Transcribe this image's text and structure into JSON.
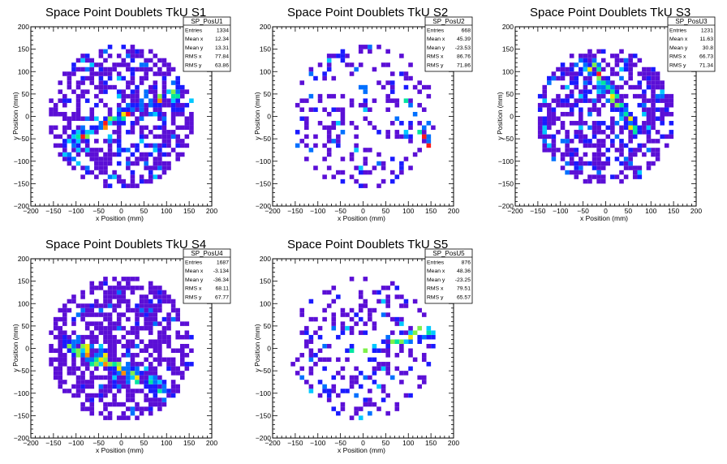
{
  "chart_data": [
    {
      "type": "heatmap",
      "title": "Space Point Doublets TkU S1",
      "xlabel": "x Position (mm)",
      "ylabel": "y Position (mm)",
      "xlim": [
        -200,
        200
      ],
      "ylim": [
        -200,
        200
      ],
      "xticks": [
        -200,
        -150,
        -100,
        -50,
        0,
        50,
        100,
        150,
        200
      ],
      "yticks": [
        -200,
        -150,
        -100,
        -50,
        0,
        50,
        100,
        150,
        200
      ],
      "stats": {
        "name": "SP_PosU1",
        "rows": [
          {
            "label": "Entries",
            "value": "1334"
          },
          {
            "label": "Mean x",
            "value": "12.34"
          },
          {
            "label": "Mean y",
            "value": "13.31"
          },
          {
            "label": "RMS x",
            "value": "77.84"
          },
          {
            "label": "RMS y",
            "value": "63.86"
          }
        ]
      },
      "entries": 1334,
      "mean_x": 12.34,
      "mean_y": 13.31,
      "rms_x": 77.84,
      "rms_y": 63.86,
      "bin_width_mm": 10,
      "fill_radius_mm": 160,
      "density": 0.55,
      "seed": 11,
      "hot_bands": [
        {
          "x1": -110,
          "y1": -55,
          "x2": 120,
          "y2": 60,
          "width": 22
        }
      ]
    },
    {
      "type": "heatmap",
      "title": "Space Point Doublets TkU S2",
      "xlabel": "x Position (mm)",
      "ylabel": "y Position (mm)",
      "xlim": [
        -200,
        200
      ],
      "ylim": [
        -200,
        200
      ],
      "xticks": [
        -200,
        -150,
        -100,
        -50,
        0,
        50,
        100,
        150,
        200
      ],
      "yticks": [
        -200,
        -150,
        -100,
        -50,
        0,
        50,
        100,
        150,
        200
      ],
      "stats": {
        "name": "SP_PosU2",
        "rows": [
          {
            "label": "Entries",
            "value": "668"
          },
          {
            "label": "Mean x",
            "value": "45.39"
          },
          {
            "label": "Mean y",
            "value": "-23.53"
          },
          {
            "label": "RMS x",
            "value": "86.76"
          },
          {
            "label": "RMS y",
            "value": "71.86"
          }
        ]
      },
      "entries": 668,
      "mean_x": 45.39,
      "mean_y": -23.53,
      "rms_x": 86.76,
      "rms_y": 71.86,
      "bin_width_mm": 10,
      "fill_radius_mm": 160,
      "density": 0.22,
      "seed": 23,
      "hot_bands": [
        {
          "x1": 100,
          "y1": 30,
          "x2": 160,
          "y2": -100,
          "width": 18
        }
      ]
    },
    {
      "type": "heatmap",
      "title": "Space Point Doublets TkU S3",
      "xlabel": "x Position (mm)",
      "ylabel": "y Position (mm)",
      "xlim": [
        -200,
        200
      ],
      "ylim": [
        -200,
        200
      ],
      "xticks": [
        -200,
        -150,
        -100,
        -50,
        0,
        50,
        100,
        150,
        200
      ],
      "yticks": [
        -200,
        -150,
        -100,
        -50,
        0,
        50,
        100,
        150,
        200
      ],
      "stats": {
        "name": "SP_PosU3",
        "rows": [
          {
            "label": "Entries",
            "value": "1231"
          },
          {
            "label": "Mean x",
            "value": "11.63"
          },
          {
            "label": "Mean y",
            "value": "30.8"
          },
          {
            "label": "RMS x",
            "value": "66.73"
          },
          {
            "label": "RMS y",
            "value": "71.34"
          }
        ]
      },
      "entries": 1231,
      "mean_x": 11.63,
      "mean_y": 30.8,
      "rms_x": 66.73,
      "rms_y": 71.34,
      "bin_width_mm": 10,
      "fill_radius_mm": 155,
      "density": 0.58,
      "seed": 37,
      "hot_bands": [
        {
          "x1": -40,
          "y1": 130,
          "x2": 60,
          "y2": -30,
          "width": 20
        }
      ]
    },
    {
      "type": "heatmap",
      "title": "Space Point Doublets TkU S4",
      "xlabel": "x Position (mm)",
      "ylabel": "y Position (mm)",
      "xlim": [
        -200,
        200
      ],
      "ylim": [
        -200,
        200
      ],
      "xticks": [
        -200,
        -150,
        -100,
        -50,
        0,
        50,
        100,
        150,
        200
      ],
      "yticks": [
        -200,
        -150,
        -100,
        -50,
        0,
        50,
        100,
        150,
        200
      ],
      "stats": {
        "name": "SP_PosU4",
        "rows": [
          {
            "label": "Entries",
            "value": "1687"
          },
          {
            "label": "Mean x",
            "value": "-3.134"
          },
          {
            "label": "Mean y",
            "value": "-36.34"
          },
          {
            "label": "RMS x",
            "value": "68.11"
          },
          {
            "label": "RMS y",
            "value": "67.77"
          }
        ]
      },
      "entries": 1687,
      "mean_x": -3.134,
      "mean_y": -36.34,
      "rms_x": 68.11,
      "rms_y": 67.77,
      "bin_width_mm": 10,
      "fill_radius_mm": 160,
      "density": 0.6,
      "seed": 53,
      "hot_bands": [
        {
          "x1": -110,
          "y1": 10,
          "x2": 90,
          "y2": -90,
          "width": 25
        }
      ]
    },
    {
      "type": "heatmap",
      "title": "Space Point Doublets TkU S5",
      "xlabel": "x Position (mm)",
      "ylabel": "y Position (mm)",
      "xlim": [
        -200,
        200
      ],
      "ylim": [
        -200,
        200
      ],
      "xticks": [
        -200,
        -150,
        -100,
        -50,
        0,
        50,
        100,
        150,
        200
      ],
      "yticks": [
        -200,
        -150,
        -100,
        -50,
        0,
        50,
        100,
        150,
        200
      ],
      "stats": {
        "name": "SP_PosU5",
        "rows": [
          {
            "label": "Entries",
            "value": "876"
          },
          {
            "label": "Mean x",
            "value": "48.36"
          },
          {
            "label": "Mean y",
            "value": "-23.25"
          },
          {
            "label": "RMS x",
            "value": "79.51"
          },
          {
            "label": "RMS y",
            "value": "65.57"
          }
        ]
      },
      "entries": 876,
      "mean_x": 48.36,
      "mean_y": -23.25,
      "rms_x": 79.51,
      "rms_y": 65.57,
      "bin_width_mm": 10,
      "fill_radius_mm": 160,
      "density": 0.28,
      "seed": 71,
      "hot_bands": [
        {
          "x1": -30,
          "y1": -10,
          "x2": 150,
          "y2": 40,
          "width": 20
        }
      ]
    }
  ],
  "colors": {
    "palette": [
      "#5b0fd6",
      "#1a1aff",
      "#0070ff",
      "#00c8ff",
      "#00e6a0",
      "#7ef04a",
      "#f2e600",
      "#ff8c00",
      "#ff1a1a"
    ],
    "axis": "#000000",
    "background": "#ffffff"
  }
}
